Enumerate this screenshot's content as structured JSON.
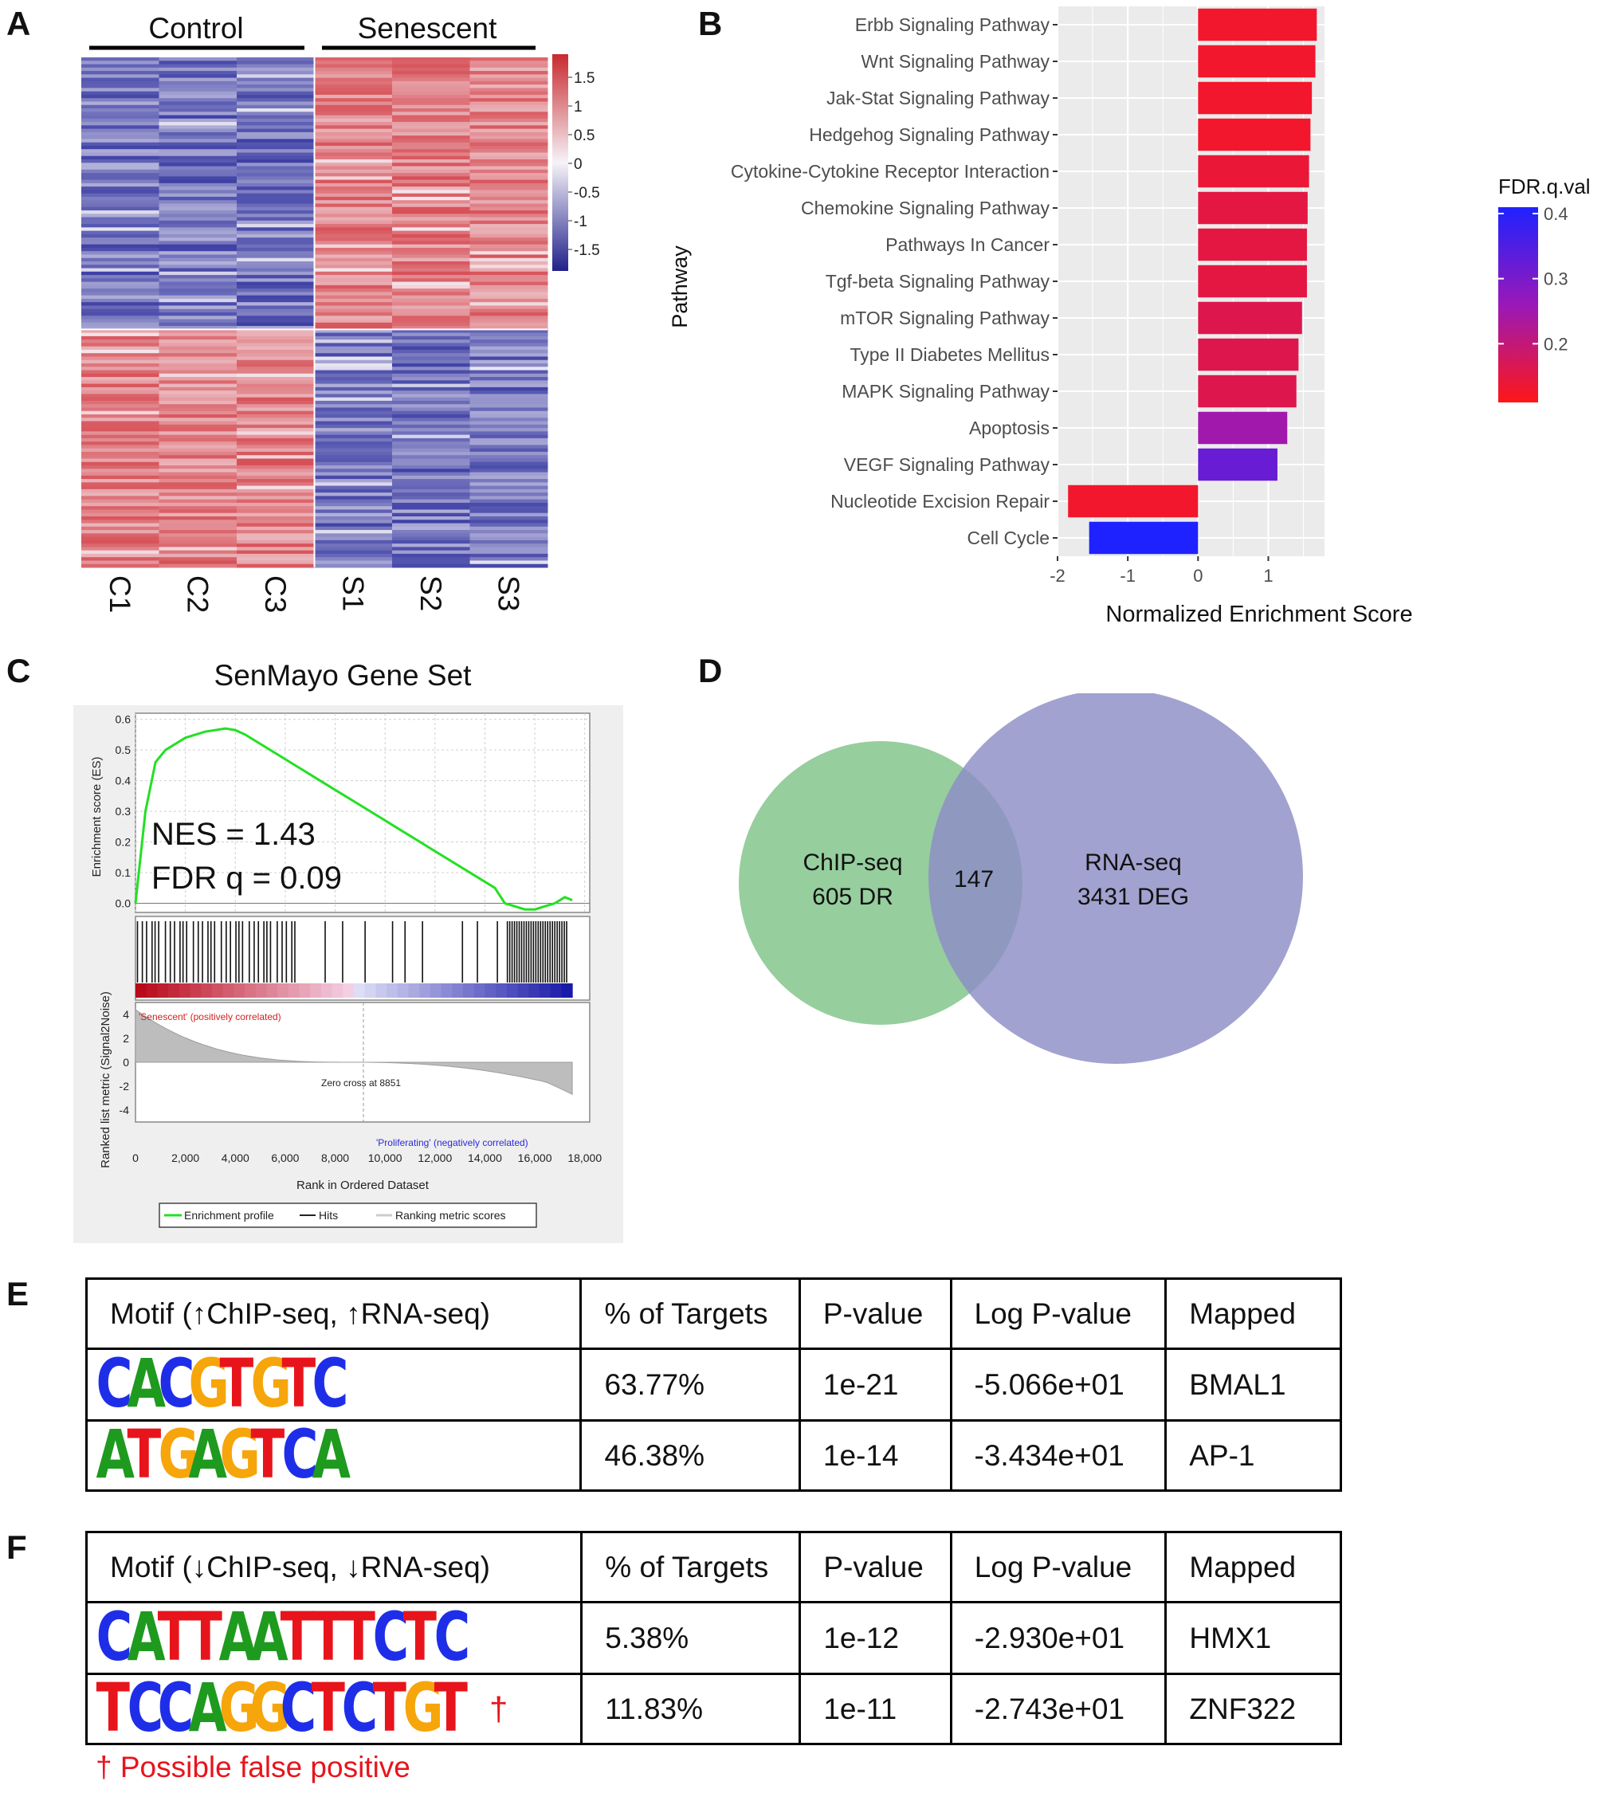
{
  "panels": {
    "a": "A",
    "b": "B",
    "c": "C",
    "d": "D",
    "e": "E",
    "f": "F"
  },
  "colors": {
    "up": "#d5474e",
    "down": "#3436a0",
    "white": "#f6f3f8",
    "green": "#8bc994",
    "purple": "#8e8dc6"
  },
  "heatmap": {
    "group_labels": [
      "Control",
      "Senescent"
    ],
    "columns": [
      "C1",
      "C2",
      "C3",
      "S1",
      "S2",
      "S3"
    ],
    "scale_ticks": [
      "1.5",
      "1",
      "0.5",
      "0",
      "-0.5",
      "-1",
      "-1.5"
    ]
  },
  "chart_data": [
    {
      "type": "bar",
      "panel": "B",
      "ylabel": "Pathway",
      "xlabel": "Normalized Enrichment Score",
      "categories": [
        "Erbb Signaling Pathway",
        "Wnt Signaling Pathway",
        "Jak-Stat Signaling Pathway",
        "Hedgehog Signaling Pathway",
        "Cytokine-Cytokine Receptor Interaction",
        "Chemokine Signaling Pathway",
        "Pathways In Cancer",
        "Tgf-beta Signaling Pathway",
        "mTOR Signaling Pathway",
        "Type II Diabetes Mellitus",
        "MAPK Signaling Pathway",
        "Apoptosis",
        "VEGF Signaling Pathway",
        "Nucleotide Excision Repair",
        "Cell Cycle"
      ],
      "values": [
        1.69,
        1.67,
        1.62,
        1.6,
        1.58,
        1.56,
        1.55,
        1.55,
        1.48,
        1.43,
        1.4,
        1.27,
        1.13,
        -1.85,
        -1.55
      ],
      "fdr": [
        0.12,
        0.12,
        0.12,
        0.12,
        0.13,
        0.14,
        0.14,
        0.14,
        0.15,
        0.15,
        0.15,
        0.24,
        0.31,
        0.12,
        0.4
      ],
      "xlim": [
        -2,
        1.8
      ],
      "xticks": [
        "-2",
        "-1",
        "0",
        "1"
      ],
      "legend": {
        "title": "FDR.q.val",
        "ticks": [
          "0.4",
          "0.3",
          "0.2"
        ],
        "placement": "right"
      }
    },
    {
      "type": "line",
      "panel": "C",
      "title": "SenMayo Gene Set",
      "ylabel": "Enrichment score (ES)",
      "ylabel2": "Ranked list metric (Signal2Noise)",
      "xlabel": "Rank in Ordered Dataset",
      "yticks": [
        "0.6",
        "0.5",
        "0.4",
        "0.3",
        "0.2",
        "0.1",
        "0.0"
      ],
      "yticks2": [
        "4",
        "2",
        "0",
        "-2",
        "-4"
      ],
      "xticks": [
        "0",
        "2,000",
        "4,000",
        "6,000",
        "8,000",
        "10,000",
        "12,000",
        "14,000",
        "16,000",
        "18,000"
      ],
      "annotation": [
        "NES = 1.43",
        "FDR q = 0.09"
      ],
      "pos_label": "'Senescent' (positively correlated)",
      "neg_label": "'Proliferating' (negatively correlated)",
      "zero_cross": "Zero cross at 8851",
      "legend": [
        "Enrichment profile",
        "Hits",
        "Ranking metric scores"
      ],
      "x": [
        0,
        400,
        800,
        1200,
        1600,
        2000,
        2400,
        2800,
        3200,
        3600,
        4000,
        4400,
        4800,
        5600,
        6400,
        7200,
        8000,
        8800,
        9600,
        10400,
        11200,
        12000,
        12800,
        13600,
        14400,
        14800,
        15200,
        15600,
        16000,
        16400,
        16800,
        17200,
        17500
      ],
      "y": [
        0.0,
        0.3,
        0.46,
        0.5,
        0.52,
        0.54,
        0.55,
        0.56,
        0.565,
        0.57,
        0.565,
        0.55,
        0.53,
        0.49,
        0.45,
        0.41,
        0.37,
        0.33,
        0.29,
        0.25,
        0.21,
        0.17,
        0.13,
        0.09,
        0.05,
        0.0,
        -0.01,
        -0.02,
        -0.02,
        -0.01,
        0.0,
        0.02,
        0.01
      ]
    }
  ],
  "venn": {
    "left_title": "ChIP-seq",
    "left_sub": "605 DR",
    "overlap": "147",
    "right_title": "RNA-seq",
    "right_sub": "3431 DEG"
  },
  "table_e": {
    "headers": [
      "Motif (↑ChIP-seq, ↑RNA-seq)",
      "% of Targets",
      "P-value",
      "Log P-value",
      "Mapped"
    ],
    "rows": [
      {
        "motif": "CACGTGTC",
        "targets": "63.77%",
        "p": "1e-21",
        "logp": "-5.066e+01",
        "mapped": "BMAL1"
      },
      {
        "motif": "ATGAGTCA",
        "targets": "46.38%",
        "p": "1e-14",
        "logp": "-3.434e+01",
        "mapped": "AP-1"
      }
    ]
  },
  "table_f": {
    "headers": [
      "Motif (↓ChIP-seq, ↓RNA-seq)",
      "% of Targets",
      "P-value",
      "Log P-value",
      "Mapped"
    ],
    "rows": [
      {
        "motif": "CATTAATTTCTC",
        "targets": "5.38%",
        "p": "1e-12",
        "logp": "-2.930e+01",
        "mapped": "HMX1"
      },
      {
        "motif": "TCCAGGCTCTGT",
        "targets": "11.83%",
        "p": "1e-11",
        "logp": "-2.743e+01",
        "mapped": "ZNF322",
        "dagger": "†"
      }
    ]
  },
  "footnote": "† Possible false positive"
}
